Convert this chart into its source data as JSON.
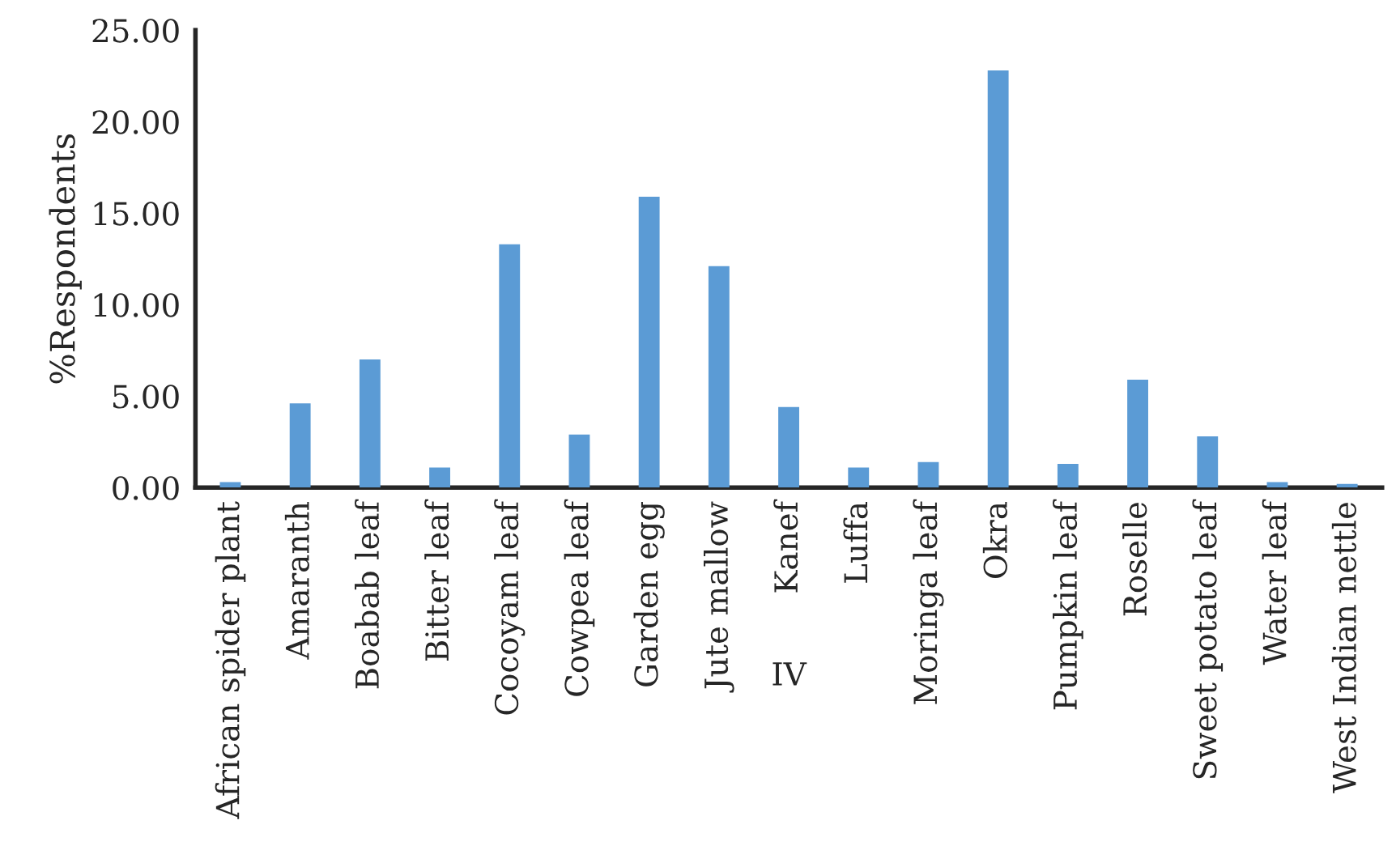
{
  "chart_data": {
    "type": "bar",
    "xlabel": "IV",
    "ylabel": "%Respondents",
    "categories": [
      "African spider plant",
      "Amaranth",
      "Boabab leaf",
      "Bitter leaf",
      "Cocoyam leaf",
      "Cowpea leaf",
      "Garden egg",
      "Jute mallow",
      "Kanef",
      "Luffa",
      "Moringa leaf",
      "Okra",
      "Pumpkin leaf",
      "Roselle",
      "Sweet potato leaf",
      "Water leaf",
      "West Indian nettle"
    ],
    "values": [
      0.3,
      4.6,
      7.0,
      1.1,
      13.3,
      2.9,
      15.9,
      12.1,
      4.4,
      1.1,
      1.4,
      22.8,
      1.3,
      5.9,
      2.8,
      0.3,
      0.2
    ],
    "color": "#5b9bd5",
    "ylim": [
      0,
      25
    ],
    "yticks": [
      {
        "value": 0,
        "label": "0.00"
      },
      {
        "value": 5,
        "label": "5.00"
      },
      {
        "value": 10,
        "label": "10.00"
      },
      {
        "value": 15,
        "label": "15.00"
      },
      {
        "value": 20,
        "label": "20.00"
      },
      {
        "value": 25,
        "label": "25.00"
      }
    ],
    "grid": false,
    "legend": false
  }
}
